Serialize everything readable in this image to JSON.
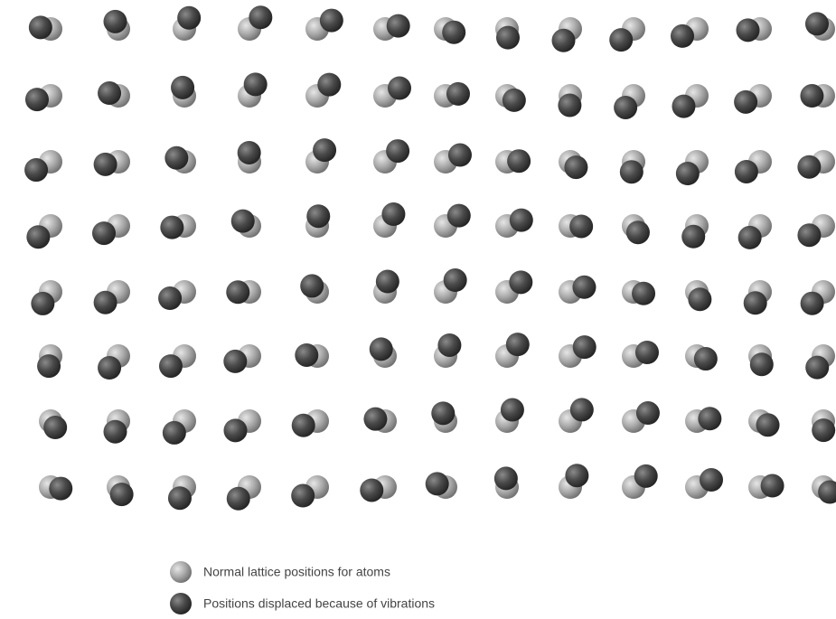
{
  "legend": {
    "items": [
      {
        "label": "Normal lattice positions for atoms"
      },
      {
        "label": "Positions displaced because of vibrations"
      }
    ]
  }
}
